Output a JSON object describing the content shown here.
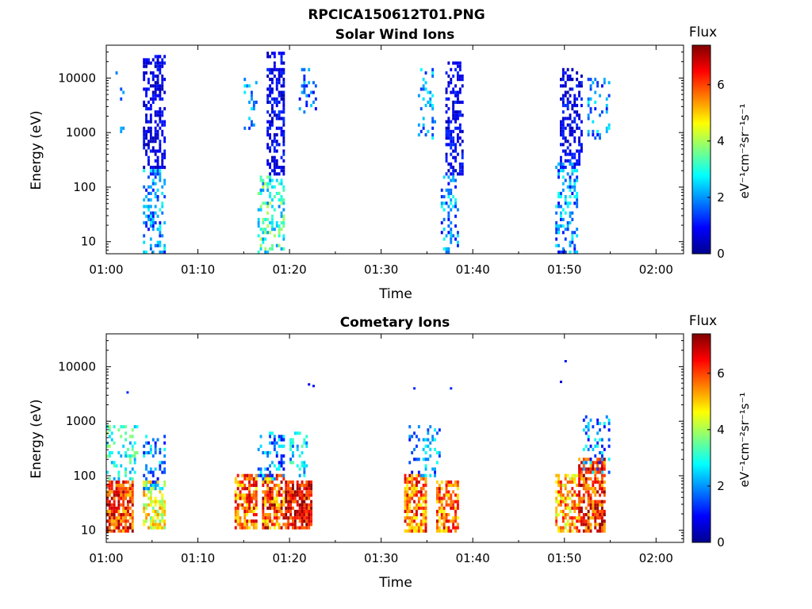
{
  "figure": {
    "title": "RPCICA150612T01.PNG"
  },
  "chart_data": [
    {
      "type": "heatmap",
      "title": "Solar Wind Ions",
      "xlabel": "Time",
      "ylabel": "Energy (eV)",
      "xticks": [
        "01:00",
        "01:10",
        "01:20",
        "01:30",
        "01:40",
        "01:50",
        "02:00"
      ],
      "xlim": [
        "01:00",
        "02:03"
      ],
      "yscale": "log",
      "ylim": [
        6,
        40000
      ],
      "yticks": [
        {
          "value": 10,
          "label": "10"
        },
        {
          "value": 100,
          "label": "100"
        },
        {
          "value": 1000,
          "label": "1000"
        },
        {
          "value": 10000,
          "label": "10000"
        }
      ],
      "colorbar": {
        "label": "Flux",
        "unit_label": "eV⁻¹cm⁻²sr⁻¹s⁻¹",
        "ticks": [
          0,
          2,
          4,
          6
        ],
        "range": [
          0,
          7.4
        ],
        "colormap": "jet"
      },
      "grid": false,
      "blobs": [
        {
          "t": [
            1.0,
            2.0
          ],
          "emin": 700,
          "emax": 14000,
          "vmin": 1.0,
          "vmax": 2.8,
          "density": 0.12
        },
        {
          "t": [
            4.0,
            6.5
          ],
          "emin": 200,
          "emax": 25000,
          "vmin": 0.3,
          "vmax": 1.2,
          "density": 0.5
        },
        {
          "t": [
            4.0,
            6.5
          ],
          "emin": 6,
          "emax": 200,
          "vmin": 1.0,
          "vmax": 3.0,
          "density": 0.35
        },
        {
          "t": [
            15.0,
            16.5
          ],
          "emin": 1000,
          "emax": 10000,
          "vmin": 1.2,
          "vmax": 2.8,
          "density": 0.25
        },
        {
          "t": [
            17.5,
            19.5
          ],
          "emin": 150,
          "emax": 30000,
          "vmin": 0.3,
          "vmax": 1.3,
          "density": 0.5
        },
        {
          "t": [
            16.5,
            19.5
          ],
          "emin": 6,
          "emax": 150,
          "vmin": 1.8,
          "vmax": 4.2,
          "density": 0.35
        },
        {
          "t": [
            21.0,
            23.0
          ],
          "emin": 2000,
          "emax": 15000,
          "vmin": 0.8,
          "vmax": 2.5,
          "density": 0.25
        },
        {
          "t": [
            34.0,
            36.0
          ],
          "emin": 700,
          "emax": 14000,
          "vmin": 1.2,
          "vmax": 2.8,
          "density": 0.2
        },
        {
          "t": [
            37.0,
            38.8
          ],
          "emin": 150,
          "emax": 20000,
          "vmin": 0.3,
          "vmax": 1.3,
          "density": 0.5
        },
        {
          "t": [
            36.5,
            38.5
          ],
          "emin": 6,
          "emax": 150,
          "vmin": 0.8,
          "vmax": 3.0,
          "density": 0.35
        },
        {
          "t": [
            49.5,
            52.0
          ],
          "emin": 200,
          "emax": 15000,
          "vmin": 0.3,
          "vmax": 1.3,
          "density": 0.45
        },
        {
          "t": [
            49.0,
            51.5
          ],
          "emin": 6,
          "emax": 300,
          "vmin": 0.8,
          "vmax": 3.0,
          "density": 0.35
        },
        {
          "t": [
            52.5,
            55.0
          ],
          "emin": 700,
          "emax": 10000,
          "vmin": 1.0,
          "vmax": 2.8,
          "density": 0.2
        }
      ]
    },
    {
      "type": "heatmap",
      "title": "Cometary Ions",
      "xlabel": "Time",
      "ylabel": "Energy (eV)",
      "xticks": [
        "01:00",
        "01:10",
        "01:20",
        "01:30",
        "01:40",
        "01:50",
        "02:00"
      ],
      "xlim": [
        "01:00",
        "02:03"
      ],
      "yscale": "log",
      "ylim": [
        6,
        40000
      ],
      "yticks": [
        {
          "value": 10,
          "label": "10"
        },
        {
          "value": 100,
          "label": "100"
        },
        {
          "value": 1000,
          "label": "1000"
        },
        {
          "value": 10000,
          "label": "10000"
        }
      ],
      "colorbar": {
        "label": "Flux",
        "unit_label": "eV⁻¹cm⁻²sr⁻¹s⁻¹",
        "ticks": [
          0,
          2,
          4,
          6
        ],
        "range": [
          0,
          7.4
        ],
        "colormap": "jet"
      },
      "grid": false,
      "blobs": [
        {
          "t": [
            0.0,
            3.0
          ],
          "emin": 8,
          "emax": 80,
          "vmin": 5.0,
          "vmax": 7.3,
          "density": 0.75
        },
        {
          "t": [
            0.0,
            3.5
          ],
          "emin": 80,
          "emax": 800,
          "vmin": 2.0,
          "vmax": 4.0,
          "density": 0.3
        },
        {
          "t": [
            4.0,
            6.5
          ],
          "emin": 10,
          "emax": 80,
          "vmin": 3.5,
          "vmax": 5.5,
          "density": 0.6
        },
        {
          "t": [
            4.0,
            6.5
          ],
          "emin": 50,
          "emax": 500,
          "vmin": 0.8,
          "vmax": 3.0,
          "density": 0.3
        },
        {
          "t": [
            14.0,
            16.5
          ],
          "emin": 10,
          "emax": 100,
          "vmin": 4.5,
          "vmax": 7.0,
          "density": 0.7
        },
        {
          "t": [
            17.0,
            19.5
          ],
          "emin": 10,
          "emax": 100,
          "vmin": 4.5,
          "vmax": 7.3,
          "density": 0.7
        },
        {
          "t": [
            16.5,
            19.5
          ],
          "emin": 80,
          "emax": 600,
          "vmin": 0.8,
          "vmax": 3.0,
          "density": 0.3
        },
        {
          "t": [
            19.5,
            22.5
          ],
          "emin": 10,
          "emax": 80,
          "vmin": 5.5,
          "vmax": 7.4,
          "density": 0.8
        },
        {
          "t": [
            20.0,
            22.0
          ],
          "emin": 80,
          "emax": 600,
          "vmin": 1.5,
          "vmax": 3.5,
          "density": 0.3
        },
        {
          "t": [
            32.5,
            35.0
          ],
          "emin": 8,
          "emax": 100,
          "vmin": 4.5,
          "vmax": 7.0,
          "density": 0.7
        },
        {
          "t": [
            33.0,
            36.5
          ],
          "emin": 80,
          "emax": 800,
          "vmin": 1.0,
          "vmax": 3.0,
          "density": 0.25
        },
        {
          "t": [
            36.0,
            38.5
          ],
          "emin": 8,
          "emax": 80,
          "vmin": 4.5,
          "vmax": 7.0,
          "density": 0.65
        },
        {
          "t": [
            49.0,
            51.5
          ],
          "emin": 8,
          "emax": 100,
          "vmin": 4.0,
          "vmax": 6.5,
          "density": 0.65
        },
        {
          "t": [
            51.5,
            54.5
          ],
          "emin": 8,
          "emax": 200,
          "vmin": 5.0,
          "vmax": 7.3,
          "density": 0.7
        },
        {
          "t": [
            52.0,
            55.0
          ],
          "emin": 100,
          "emax": 1200,
          "vmin": 1.0,
          "vmax": 3.0,
          "density": 0.25
        }
      ],
      "points": [
        {
          "t": 2.2,
          "e": 3200,
          "v": 1.2
        },
        {
          "t": 22.0,
          "e": 4500,
          "v": 0.8
        },
        {
          "t": 22.5,
          "e": 4200,
          "v": 1.0
        },
        {
          "t": 33.5,
          "e": 3800,
          "v": 1.2
        },
        {
          "t": 37.5,
          "e": 3800,
          "v": 1.2
        },
        {
          "t": 49.5,
          "e": 5000,
          "v": 0.6
        },
        {
          "t": 50.0,
          "e": 12000,
          "v": 1.0
        }
      ]
    }
  ]
}
